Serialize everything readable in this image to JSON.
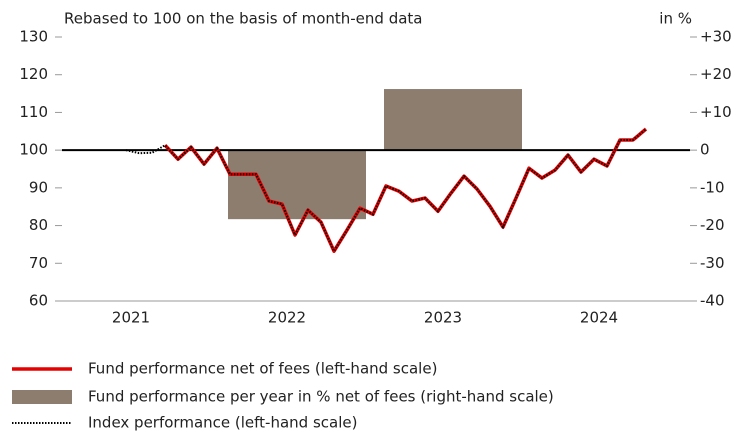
{
  "chart_data": {
    "type": "line",
    "title": "Rebased to 100 on the basis of month-end data",
    "y2_label": "in %",
    "categories": [
      null,
      null,
      null,
      null,
      null,
      null,
      "2021",
      null,
      null,
      null,
      null,
      null,
      null,
      null,
      null,
      null,
      null,
      null,
      "2022",
      null,
      null,
      null,
      null,
      null,
      null,
      null,
      null,
      null,
      null,
      null,
      "2023",
      null,
      null,
      null,
      null,
      null,
      null,
      null,
      null,
      null,
      null,
      null,
      "2024",
      null,
      null,
      null,
      null,
      null,
      null,
      null
    ],
    "ylim": [
      60,
      130
    ],
    "yticks": [
      60,
      70,
      80,
      90,
      100,
      110,
      120,
      130
    ],
    "y2lim": [
      -40,
      30
    ],
    "y2ticks": [
      {
        "value": 30,
        "label": "+30"
      },
      {
        "value": 20,
        "label": "+20"
      },
      {
        "value": 10,
        "label": "+10"
      },
      0,
      -10,
      -20,
      -30,
      -40
    ],
    "series": [
      {
        "name": "Fund performance net of fees (left-hand scale)",
        "type": "line",
        "color": "#e60000",
        "values": [
          null,
          null,
          null,
          null,
          null,
          null,
          null,
          null,
          null,
          101.3,
          97.6,
          100.8,
          96.3,
          100.5,
          93.6,
          93.6,
          93.6,
          86.5,
          85.7,
          77.5,
          84.1,
          80.9,
          73.2,
          78.8,
          84.6,
          83.0,
          90.5,
          89.1,
          86.5,
          87.3,
          83.8,
          88.6,
          93.1,
          89.7,
          85.1,
          79.6,
          87.3,
          95.2,
          92.6,
          94.7,
          98.7,
          94.2,
          97.6,
          95.8,
          102.7,
          102.7,
          105.6,
          null,
          null,
          null
        ]
      },
      {
        "name": "Fund performance per year in % net of fees (right-hand scale)",
        "type": "bar",
        "axis": "y2",
        "color": "#8c7d6e",
        "values": [
          null,
          null,
          null,
          null,
          null,
          null,
          null,
          null,
          null,
          null,
          null,
          null,
          null,
          null,
          null,
          null,
          null,
          null,
          -18.3,
          null,
          null,
          null,
          null,
          null,
          null,
          null,
          null,
          null,
          null,
          null,
          16.2,
          null,
          null,
          null,
          null,
          null,
          null,
          null,
          null,
          null,
          null,
          null,
          null,
          null,
          null,
          null,
          null,
          null,
          null,
          null
        ]
      },
      {
        "name": "Index performance (left-hand scale)",
        "type": "dotted",
        "color": "#000000",
        "values": [
          null,
          null,
          null,
          null,
          null,
          null,
          100,
          99.2,
          99.3,
          101.3,
          97.6,
          100.8,
          96.3,
          100.5,
          93.6,
          93.6,
          93.6,
          86.5,
          85.7,
          77.5,
          84.1,
          80.9,
          73.2,
          78.8,
          84.6,
          83.0,
          90.5,
          89.1,
          86.5,
          87.3,
          83.8,
          88.6,
          93.1,
          89.7,
          85.1,
          79.6,
          87.3,
          95.2,
          92.6,
          94.7,
          98.7,
          94.2,
          97.6,
          95.8,
          102.7,
          102.7,
          105.6,
          null,
          null,
          null
        ]
      }
    ]
  }
}
